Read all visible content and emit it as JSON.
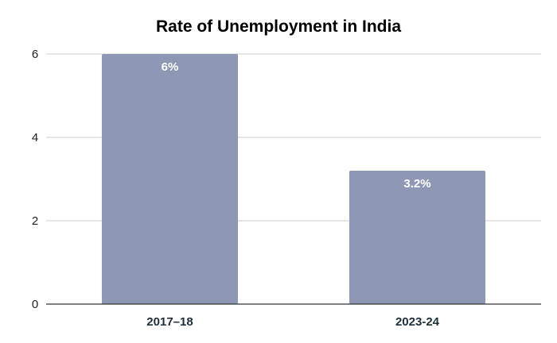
{
  "chart_data": {
    "type": "bar",
    "title": "Rate of Unemployment in India",
    "categories": [
      "2017–18",
      "2023-24"
    ],
    "values": [
      6,
      3.2
    ],
    "data_labels": [
      "6%",
      "3.2%"
    ],
    "xlabel": "",
    "ylabel": "",
    "ylim": [
      0,
      6
    ],
    "yticks": [
      0,
      2,
      4,
      6
    ],
    "ytick_labels": [
      "0",
      "2",
      "4",
      "6"
    ],
    "grid": true,
    "legend": "none",
    "colors": {
      "bar": "#8e97b4",
      "grid": "#cccccc",
      "axis": "#333333",
      "category_label": "#1e2f3a"
    }
  }
}
